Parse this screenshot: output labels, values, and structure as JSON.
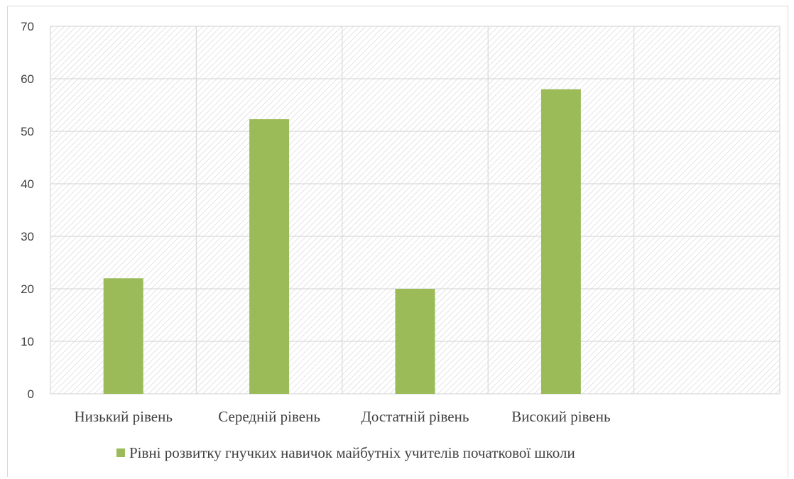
{
  "chart_data": {
    "type": "bar",
    "categories": [
      "Низький рівень",
      "Середній рівень",
      "Достатній рівень",
      "Високий рівень",
      ""
    ],
    "series": [
      {
        "name": "Рівні розвитку гнучких навичок майбутніх учителів початкової школи",
        "values": [
          22,
          52.3,
          20,
          58,
          null
        ],
        "color": "#9bbb59"
      }
    ],
    "ylim": [
      0,
      70
    ],
    "yticks": [
      0,
      10,
      20,
      30,
      40,
      50,
      60,
      70
    ],
    "grid": true,
    "legend_position": "bottom",
    "plot_background": "hatched-diagonal",
    "colors": {
      "bar": "#9bbb59",
      "grid": "#d9d9d9",
      "hatch": "#d0d0d0",
      "text": "#404040"
    }
  }
}
